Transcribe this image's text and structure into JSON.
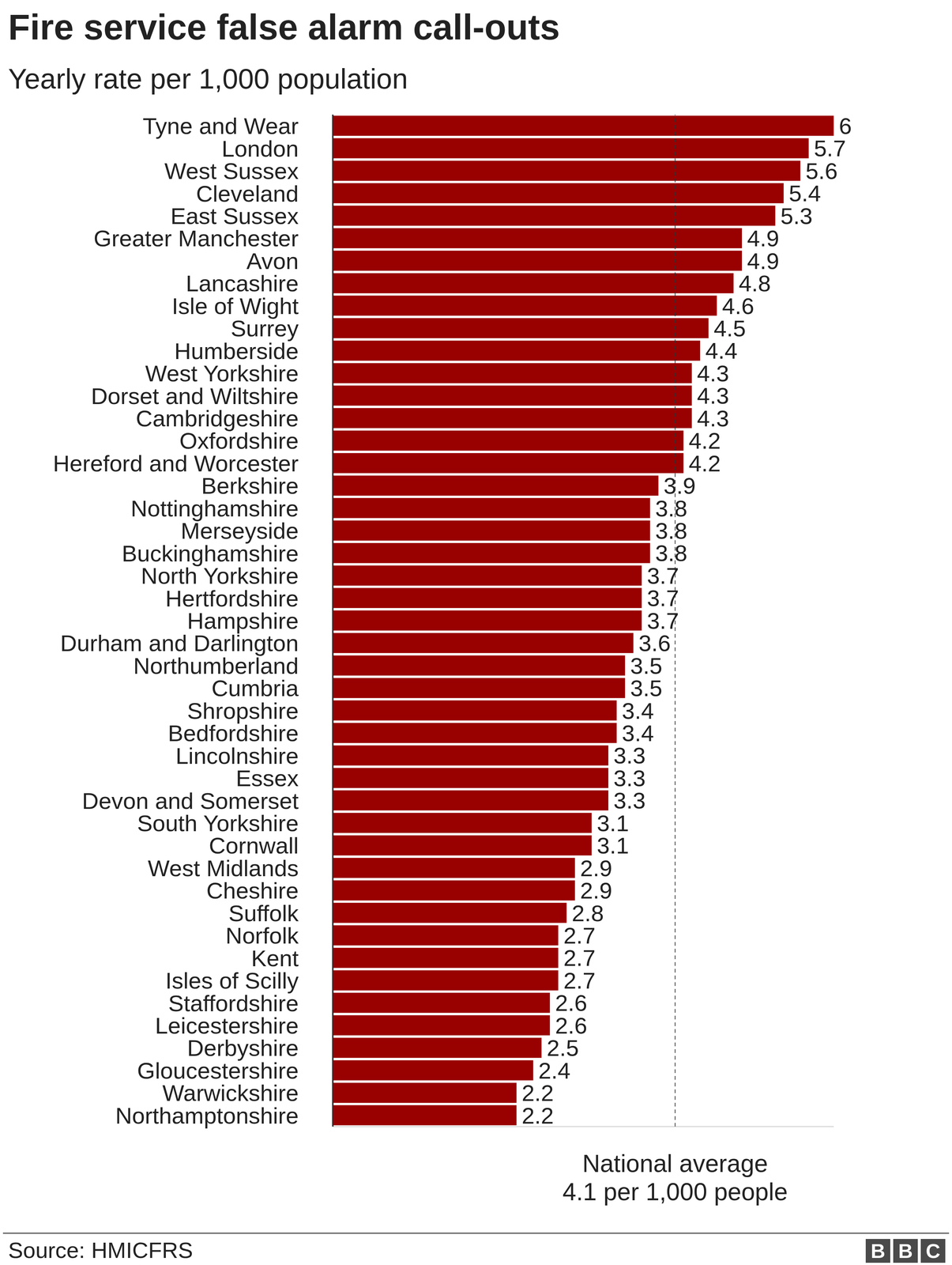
{
  "chart_data": {
    "type": "bar",
    "orientation": "horizontal",
    "title": "Fire service false alarm call-outs",
    "subtitle": "Yearly rate per 1,000 population",
    "categories": [
      "Tyne and Wear",
      "London",
      "West Sussex",
      "Cleveland",
      "East Sussex",
      "Greater Manchester",
      "Avon",
      "Lancashire",
      "Isle of Wight",
      "Surrey",
      "Humberside",
      "West Yorkshire",
      "Dorset and Wiltshire",
      "Cambridgeshire",
      "Oxfordshire",
      "Hereford and Worcester",
      "Berkshire",
      "Nottinghamshire",
      "Merseyside",
      "Buckinghamshire",
      "North Yorkshire",
      "Hertfordshire",
      "Hampshire",
      "Durham and Darlington",
      "Northumberland",
      "Cumbria",
      "Shropshire",
      "Bedfordshire",
      "Lincolnshire",
      "Essex",
      "Devon and Somerset",
      "South Yorkshire",
      "Cornwall",
      "West Midlands",
      "Cheshire",
      "Suffolk",
      "Norfolk",
      "Kent",
      "Isles of Scilly",
      "Staffordshire",
      "Leicestershire",
      "Derbyshire",
      "Gloucestershire",
      "Warwickshire",
      "Northamptonshire"
    ],
    "values": [
      6,
      5.7,
      5.6,
      5.4,
      5.3,
      4.9,
      4.9,
      4.8,
      4.6,
      4.5,
      4.4,
      4.3,
      4.3,
      4.3,
      4.2,
      4.2,
      3.9,
      3.8,
      3.8,
      3.8,
      3.7,
      3.7,
      3.7,
      3.6,
      3.5,
      3.5,
      3.4,
      3.4,
      3.3,
      3.3,
      3.3,
      3.1,
      3.1,
      2.9,
      2.9,
      2.8,
      2.7,
      2.7,
      2.7,
      2.6,
      2.6,
      2.5,
      2.4,
      2.2,
      2.2
    ],
    "color": "#990000",
    "xlim": [
      0,
      6
    ],
    "tick_labels": "y",
    "grid": false,
    "data_labels": true,
    "reference_line": {
      "value": 4.1,
      "label": [
        "National average",
        "4.1 per 1,000 people"
      ],
      "line_style": "dashed"
    },
    "source": "Source: HMICFRS",
    "logo": "BBC"
  }
}
